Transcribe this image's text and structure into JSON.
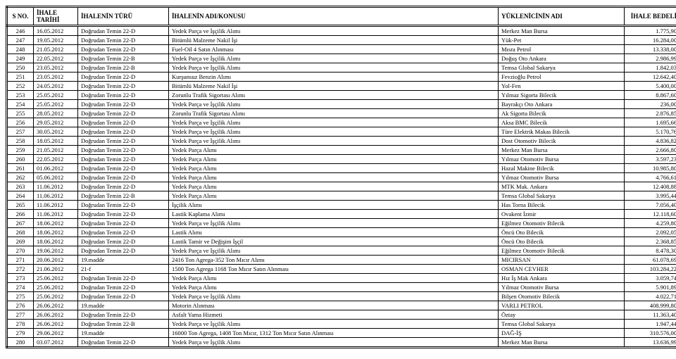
{
  "columns": [
    "S NO.",
    "İHALE TARİHİ",
    "İHALENİN TÜRÜ",
    "İHALENİN ADI/KONUSU",
    "YÜKLENİCİNİN ADI",
    "İHALE BEDELİ"
  ],
  "rows": [
    [
      "246",
      "16.05.2012",
      "Doğrudan Temin 22-D",
      "Yedek Parça ve İşçilik Alımı",
      "Merkez Man Bursa",
      "1.775,90"
    ],
    [
      "247",
      "19.05.2012",
      "Doğrudan Temin 22-D",
      "Bitümlü Malzeme Nakil İşi",
      "Yük-Pet",
      "16.284,00"
    ],
    [
      "248",
      "21.05.2012",
      "Doğrudan Temin 22-D",
      "Fuel-Oil 4 Satın Alınması",
      "Mısra Petrol",
      "13.338,00"
    ],
    [
      "249",
      "22.05.2012",
      "Doğrudan Temin 22-B",
      "Yedek Parça ve İşçilik Alımı",
      "Doğuş Oto Ankara",
      "2.986,99"
    ],
    [
      "250",
      "23.05.2012",
      "Doğrudan Temin 22-B",
      "Yedek Parça ve İşçilik Alımı",
      "Temsa Global Sakarya",
      "1.842,03"
    ],
    [
      "251",
      "23.05.2012",
      "Doğrudan Temin 22-D",
      "Kurşunsuz Benzin Alımı",
      "Fevzioğlu Petrol",
      "12.642,40"
    ],
    [
      "252",
      "24.05.2012",
      "Doğrudan Temin 22-D",
      "Bitümlü Malzeme Nakil İşi",
      "Yol-Fen",
      "5.400,00"
    ],
    [
      "253",
      "25.05.2012",
      "Doğrudan Temin 22-D",
      "Zorunlu Trafik Sigortası Alımı",
      "Yılmaz Sigorta Bilecik",
      "8.867,60"
    ],
    [
      "254",
      "25.05.2012",
      "Doğrudan Temin 22-D",
      "Yedek Parça ve İşçilik Alımı",
      "Bayrakçı Oto Ankara",
      "236,00"
    ],
    [
      "255",
      "28.05.2012",
      "Doğrudan Temin 22-D",
      "Zorunlu Trafik Sigortası Alımı",
      "Ak Sigorta Bilecik",
      "2.876,85"
    ],
    [
      "256",
      "29.05.2012",
      "Doğrudan Temin 22-D",
      "Yedek Parça ve İşçilik Alımı",
      "Aksa BMC Bilecik",
      "1.695,66"
    ],
    [
      "257",
      "30.05.2012",
      "Doğrudan Temin 22-D",
      "Yedek Parça ve İşçilik Alımı",
      "Türe Elektrik Makas Bilecik",
      "5.170,76"
    ],
    [
      "258",
      "18.05.2012",
      "Doğrudan Temin 22-D",
      "Yedek Parça ve İşçilik Alımı",
      "Dost Otomotiv Bilecik",
      "4.836,82"
    ],
    [
      "259",
      "21.05.2012",
      "Doğrudan Temin 22-D",
      "Yedek Parça Alımı",
      "Merkez Man Bursa",
      "2.666,80"
    ],
    [
      "260",
      "22.05.2012",
      "Doğrudan Temin 22-D",
      "Yedek Parça Alımı",
      "Yılmaz Otomotiv Bursa",
      "3.597,23"
    ],
    [
      "261",
      "01.06.2012",
      "Doğrudan Temin 22-D",
      "Yedek Parça Alımı",
      "Hazal Makine Bilecik",
      "10.985,80"
    ],
    [
      "262",
      "05.06.2012",
      "Doğrudan Temin 22-D",
      "Yedek Parça Alımı",
      "Yılmaz Otomotiv Bursa",
      "4.766,61"
    ],
    [
      "263",
      "11.06.2012",
      "Doğrudan Temin 22-D",
      "Yedek Parça Alımı",
      "MTK Mak. Ankara",
      "12.408,88"
    ],
    [
      "264",
      "11.06.2012",
      "Doğrudan Temin 22-B",
      "Yedek Parça Alımı",
      "Temsa Global Sakarya",
      "3.995,44"
    ],
    [
      "265",
      "11.06.2012",
      "Doğrudan Temin 22-D",
      "İşçilik Alımı",
      "Has Torna Bilecik",
      "7.056,40"
    ],
    [
      "266",
      "11.06.2012",
      "Doğrudan Temin 22-D",
      "Lastik Kaplama Alımı",
      "Ovakent İzmir",
      "12.118,60"
    ],
    [
      "267",
      "18.06.2012",
      "Doğrudan Temin 22-D",
      "Yedek Parça ve İşçilik Alımı",
      "Eğilmez Otomotiv Bilecik",
      "4.259,80"
    ],
    [
      "268",
      "18.06.2012",
      "Doğrudan Temin 22-D",
      "Lastik Alımı",
      "Öncü Oto Bilecik",
      "2.092,05"
    ],
    [
      "269",
      "18.06.2012",
      "Doğrudan Temin 22-D",
      "Lastik Tamir ve Değişim İşçil",
      "Öncü Oto Bilecik",
      "2.368,85"
    ],
    [
      "270",
      "19.06.2012",
      "Doğrudan Temin 22-D",
      "Yedek Parça ve İşçilik Alımı",
      "Eğilmez Otomotiv Bilecik",
      "8.478,30"
    ],
    [
      "271",
      "20.06.2012",
      "19.madde",
      "2416 Ton Agrega-352 Ton Mıcır Alımı",
      "MICIRSAN",
      "61.078,69"
    ],
    [
      "272",
      "21.06.2012",
      "21-f",
      "1500 Ton Agrega 1168 Ton Mıcır Satın Alınması",
      "OSMAN CEVHER",
      "103.284,22"
    ],
    [
      "273",
      "25.06.2012",
      "Doğrudan Temin 22-D",
      "Yedek Parça Alımı",
      "Hız İş Mak Ankara",
      "3.059,74"
    ],
    [
      "274",
      "25.06.2012",
      "Doğrudan Temin 22-D",
      "Yedek Parça Alımı",
      "Yılmaz Otomotiv Bursa",
      "5.901,89"
    ],
    [
      "275",
      "25.06.2012",
      "Doğrudan Temin 22-D",
      "Yedek Parça ve İşçilik Alımı",
      "Bilşen Otomotiv Bilecik",
      "4.022,71"
    ],
    [
      "276",
      "26.06.2012",
      "19.madde",
      "Motorin Alınması",
      "VARLI PETROL",
      "408.999,80"
    ],
    [
      "277",
      "26.06.2012",
      "Doğrudan Temin 22-D",
      "Asfalt Yama Hizmeti",
      "Öztay",
      "11.363,40"
    ],
    [
      "278",
      "26.06.2012",
      "Doğrudan Temin 22-B",
      "Yedek Parça ve İşçilik Alımı",
      "Temsa Global Sakarya",
      "1.947,44"
    ],
    [
      "279",
      "29.06.2012",
      "19.madde",
      "16000 Ton Agrega, 1408 Ton Mıcır, 1312 Ton Mıcır Satın Alınması",
      "DAĞ-İŞ",
      "310.576,00"
    ],
    [
      "280",
      "03.07.2012",
      "Doğrudan Temin 22-D",
      "Yedek Parça ve İşçilik Alımı",
      "Merkez Man Bursa",
      "13.636,99"
    ]
  ]
}
